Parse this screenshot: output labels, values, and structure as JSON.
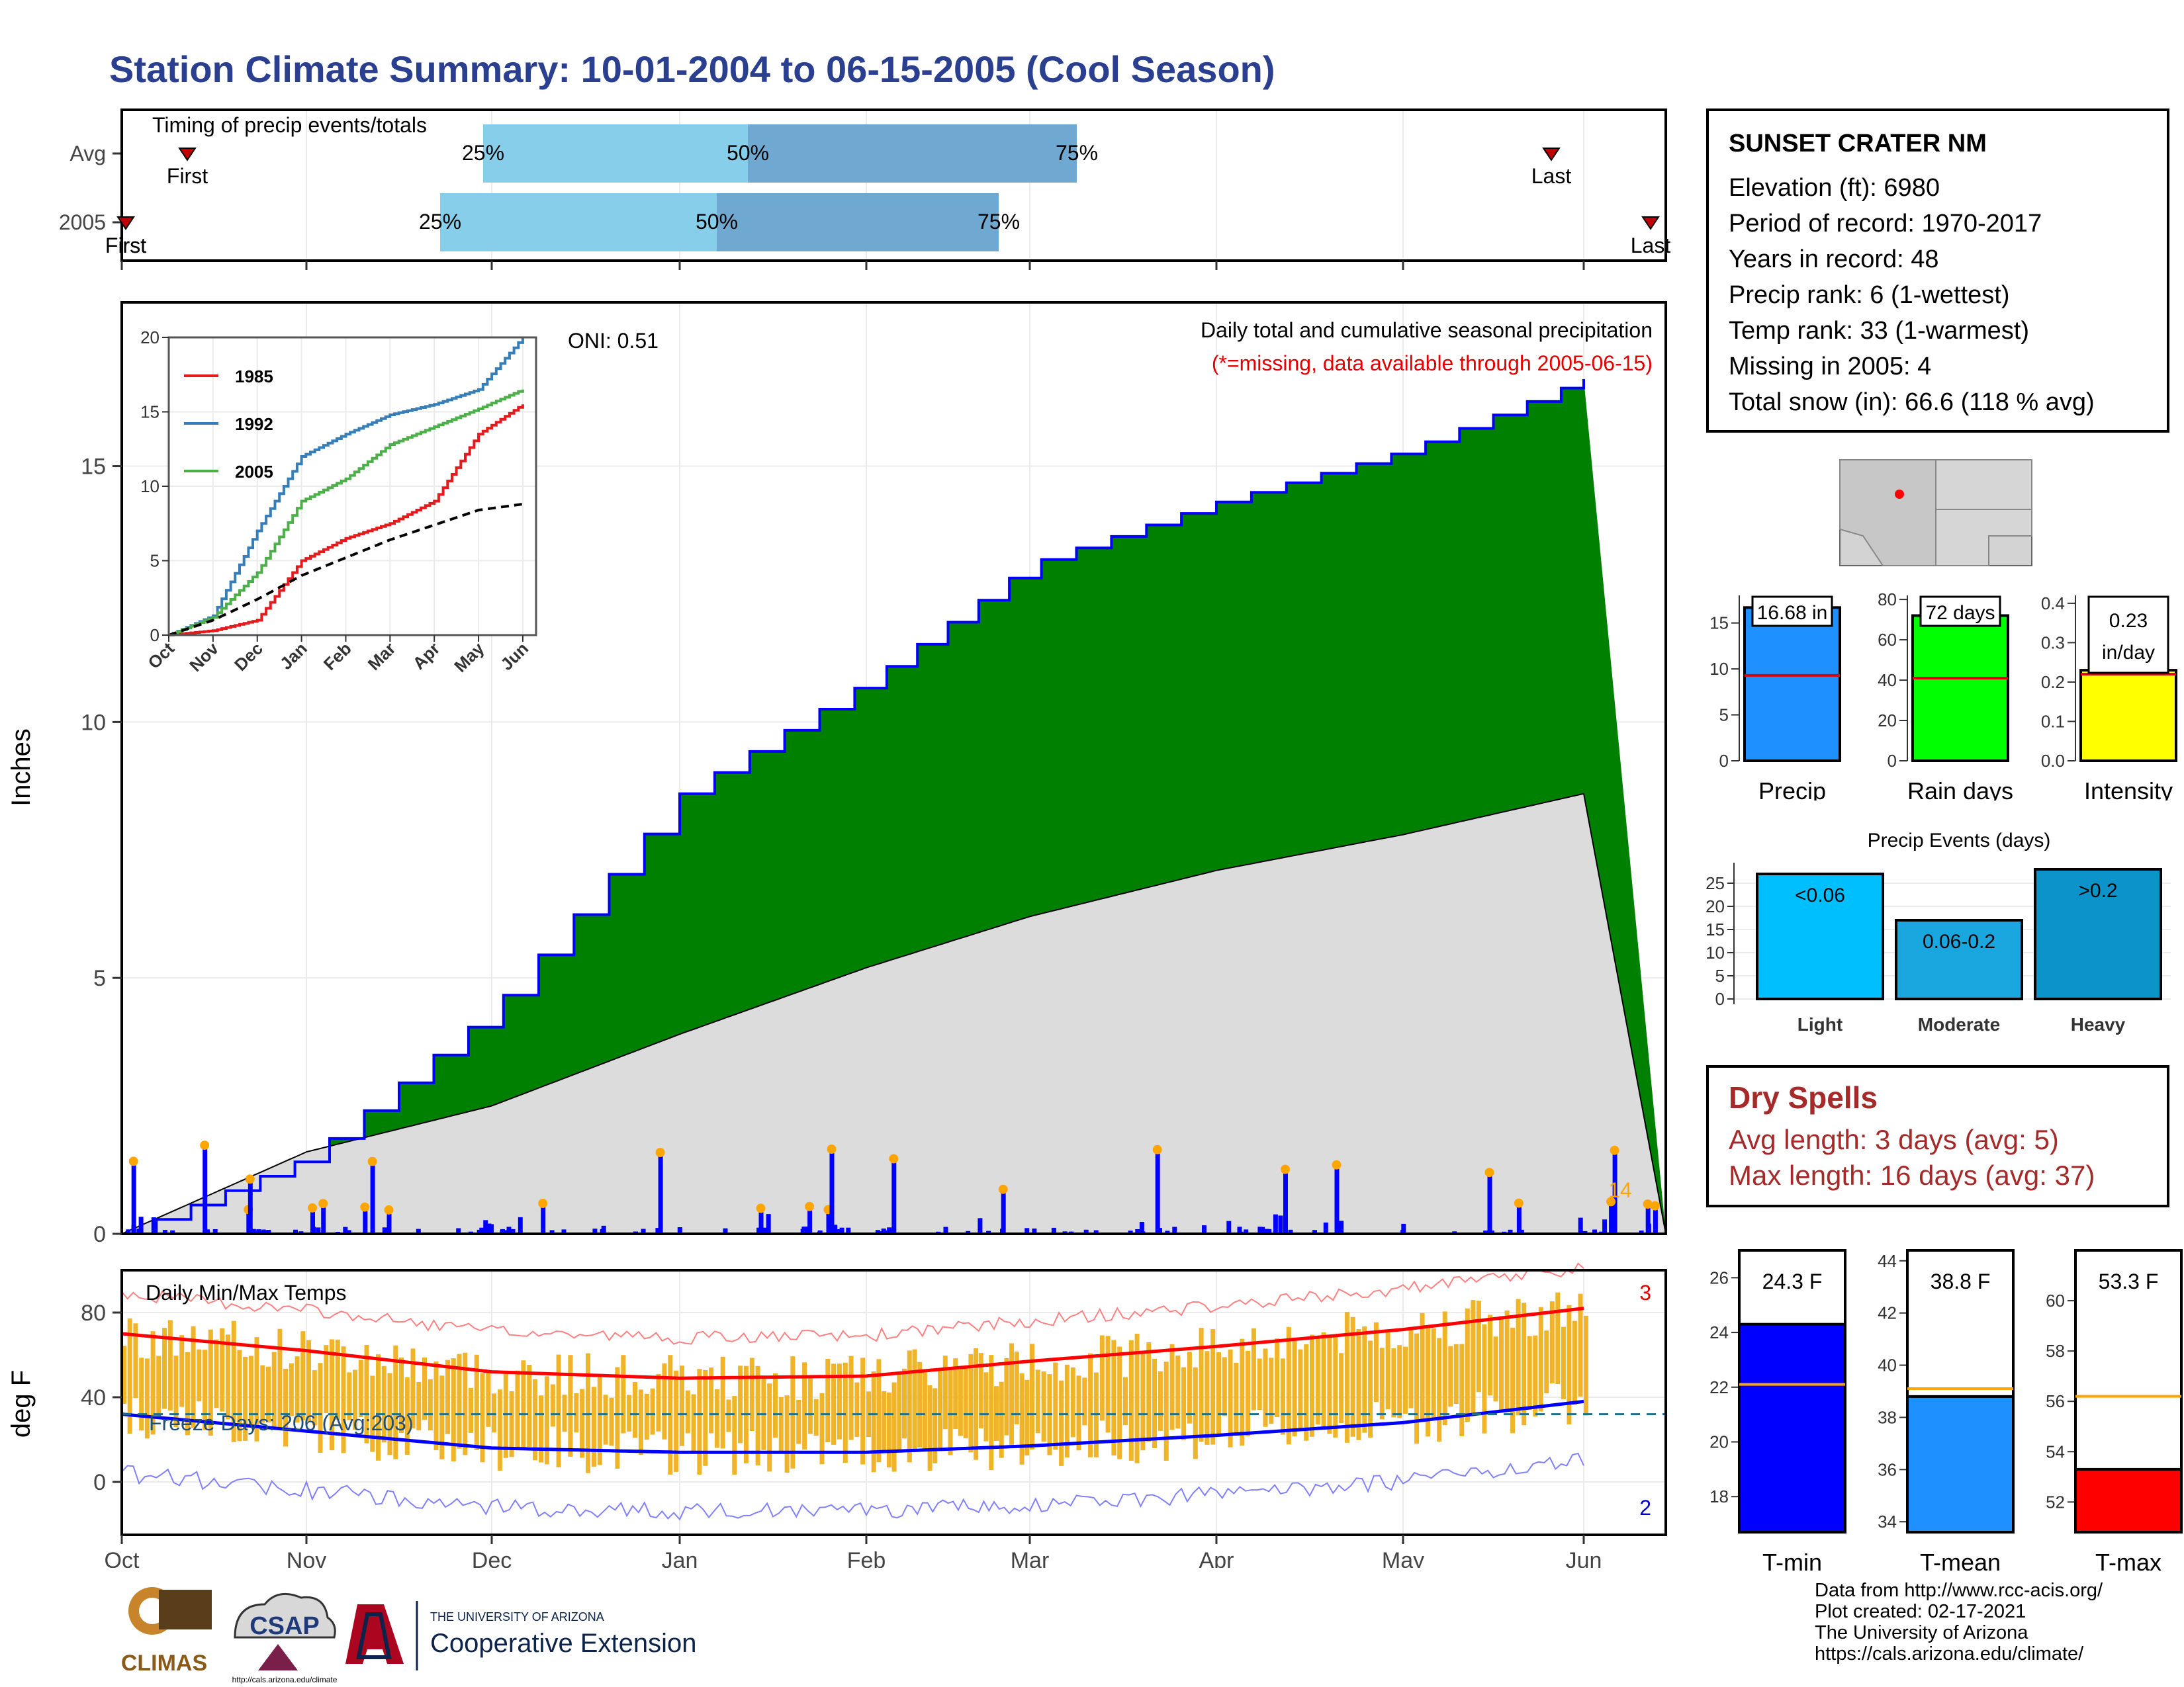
{
  "title": "Station Climate Summary: 10-01-2004 to 06-15-2005 (Cool Season)",
  "timing": {
    "label": "Timing of precip events/totals",
    "rows": [
      {
        "name": "Avg",
        "first": "First",
        "last": "Last",
        "p25": "25%",
        "p50": "50%",
        "p75": "75%"
      },
      {
        "name": "2005",
        "first": "First",
        "last": "Last",
        "p25": "25%",
        "p50": "50%",
        "p75": "75%"
      }
    ]
  },
  "main": {
    "ylabel": "Inches",
    "oni": "ONI: 0.51",
    "subtitle": "Daily total and cumulative seasonal precipitation",
    "missing_note": "(*=missing, data available through 2005-06-15)",
    "count_label": "14",
    "yticks": [
      "0",
      "5",
      "10",
      "15"
    ],
    "months": [
      "Oct",
      "Nov",
      "Dec",
      "Jan",
      "Feb",
      "Mar",
      "Apr",
      "May",
      "Jun"
    ]
  },
  "inset": {
    "series": [
      {
        "name": "1985",
        "color": "#e41a1c"
      },
      {
        "name": "1992",
        "color": "#377eb8"
      },
      {
        "name": "2005",
        "color": "#4daf4a"
      }
    ],
    "yticks": [
      "0",
      "5",
      "10",
      "15",
      "20"
    ],
    "months": [
      "Oct",
      "Nov",
      "Dec",
      "Jan",
      "Feb",
      "Mar",
      "Apr",
      "May",
      "Jun"
    ]
  },
  "temps": {
    "label": "Daily Min/Max Temps",
    "ylabel": "deg F",
    "freeze": "Freeze Days: 206 (Avg:203)",
    "max_count": "3",
    "min_count": "2",
    "yticks": [
      "0",
      "40",
      "80"
    ]
  },
  "info": {
    "station": "SUNSET CRATER NM",
    "lines": [
      "Elevation (ft): 6980",
      "Period of record: 1970-2017",
      "Years in record: 48",
      "Precip rank: 6 (1-wettest)",
      "Temp rank: 33 (1-warmest)",
      "Missing in 2005: 4",
      "Total snow (in): 66.6 (118 % avg)"
    ]
  },
  "mini_bars": [
    {
      "label": "Precip",
      "value_text": "16.68 in",
      "yticks": [
        "0",
        "5",
        "10",
        "15"
      ],
      "color": "#1e90ff"
    },
    {
      "label": "Rain days",
      "value_text": "72 days",
      "yticks": [
        "0",
        "20",
        "40",
        "60",
        "80"
      ],
      "color": "#00ff00"
    },
    {
      "label": "Intensity",
      "value_text": "0.23",
      "value_text2": "in/day",
      "yticks": [
        "0.0",
        "0.1",
        "0.2",
        "0.3",
        "0.4"
      ],
      "color": "#ffff00"
    }
  ],
  "events": {
    "title": "Precip Events (days)",
    "yticks": [
      "0",
      "5",
      "10",
      "15",
      "20",
      "25"
    ],
    "bars": [
      {
        "label": "Light",
        "text": "<0.06",
        "value": 27,
        "color": "#00bfff"
      },
      {
        "label": "Moderate",
        "text": "0.06-0.2",
        "value": 17,
        "color": "#1aa7e0"
      },
      {
        "label": "Heavy",
        "text": ">0.2",
        "value": 28,
        "color": "#0c93c9"
      }
    ]
  },
  "dry_spells": {
    "title": "Dry Spells",
    "lines": [
      "Avg length: 3 days (avg: 5)",
      "Max length: 16 days (avg: 37)"
    ]
  },
  "temp_bars": [
    {
      "label": "T-min",
      "value_text": "24.3 F",
      "yticks": [
        "18",
        "20",
        "22",
        "24",
        "26"
      ],
      "color": "#0000ff"
    },
    {
      "label": "T-mean",
      "value_text": "38.8 F",
      "yticks": [
        "34",
        "36",
        "38",
        "40",
        "42",
        "44"
      ],
      "color": "#1e90ff"
    },
    {
      "label": "T-max",
      "value_text": "53.3 F",
      "yticks": [
        "52",
        "54",
        "56",
        "58",
        "60"
      ],
      "color": "#ff0000"
    }
  ],
  "credits": [
    "Data from http://www.rcc-acis.org/",
    "Plot created: 02-17-2021",
    "The University of Arizona",
    "https://cals.arizona.edu/climate/"
  ],
  "logos": {
    "climas": "CLIMAS",
    "csap": "CSAP",
    "csap_url": "http://cals.arizona.edu/climate",
    "ua_small": "THE UNIVERSITY OF ARIZONA",
    "ua_big": "Cooperative Extension"
  },
  "chart_data": [
    {
      "type": "area",
      "title": "Daily total and cumulative seasonal precipitation",
      "ylabel": "Inches",
      "ylim": [
        0,
        18.2
      ],
      "x": [
        "Oct",
        "Nov",
        "Dec",
        "Jan",
        "Feb",
        "Mar",
        "Apr",
        "May",
        "Jun"
      ],
      "series": [
        {
          "name": "2005",
          "values": [
            0.0,
            1.5,
            4.4,
            8.6,
            10.8,
            13.1,
            14.3,
            15.3,
            16.7
          ]
        },
        {
          "values": [
            0.0,
            1.6,
            2.5,
            3.9,
            5.2,
            6.2,
            7.1,
            7.8,
            8.6
          ]
        }
      ]
    },
    {
      "type": "line",
      "ylim": [
        0,
        20
      ],
      "x": [
        "Oct",
        "Nov",
        "Dec",
        "Jan",
        "Feb",
        "Mar",
        "Apr",
        "May",
        "Jun"
      ],
      "series": [
        {
          "name": "1985",
          "values": [
            0.0,
            0.3,
            1.0,
            5.0,
            6.5,
            7.5,
            9.0,
            13.5,
            15.5
          ]
        },
        {
          "name": "1992",
          "values": [
            0.0,
            1.3,
            7.0,
            12.0,
            13.5,
            14.8,
            15.5,
            16.5,
            20.0
          ]
        },
        {
          "name": "2005",
          "values": [
            0.0,
            1.2,
            4.2,
            9.0,
            10.5,
            12.8,
            14.0,
            15.2,
            16.5
          ]
        },
        {
          "values": [
            0.0,
            1.0,
            2.4,
            4.0,
            5.2,
            6.4,
            7.4,
            8.4,
            8.8
          ]
        }
      ]
    },
    {
      "type": "line",
      "title": "Daily Min/Max Temps",
      "ylabel": "deg F",
      "ylim": [
        -25,
        100
      ],
      "x": [
        "Oct",
        "Nov",
        "Dec",
        "Jan",
        "Feb",
        "Mar",
        "Apr",
        "May",
        "Jun"
      ],
      "series": [
        {
          "values": [
            70,
            62,
            52,
            49,
            50,
            57,
            64,
            72,
            82
          ]
        },
        {
          "values": [
            32,
            24,
            16,
            14,
            14,
            17,
            22,
            28,
            38
          ]
        }
      ]
    },
    {
      "type": "bar",
      "categories": [
        "Precip",
        "Rain days",
        "Intensity"
      ],
      "values": [
        16.68,
        72,
        0.23
      ]
    },
    {
      "type": "bar",
      "title": "Precip Events (days)",
      "categories": [
        "Light",
        "Moderate",
        "Heavy"
      ],
      "values": [
        27,
        17,
        28
      ],
      "ylim": [
        0,
        28
      ]
    },
    {
      "type": "bar",
      "categories": [
        "T-min",
        "T-mean",
        "T-max"
      ],
      "values": [
        24.3,
        38.8,
        53.3
      ]
    }
  ]
}
